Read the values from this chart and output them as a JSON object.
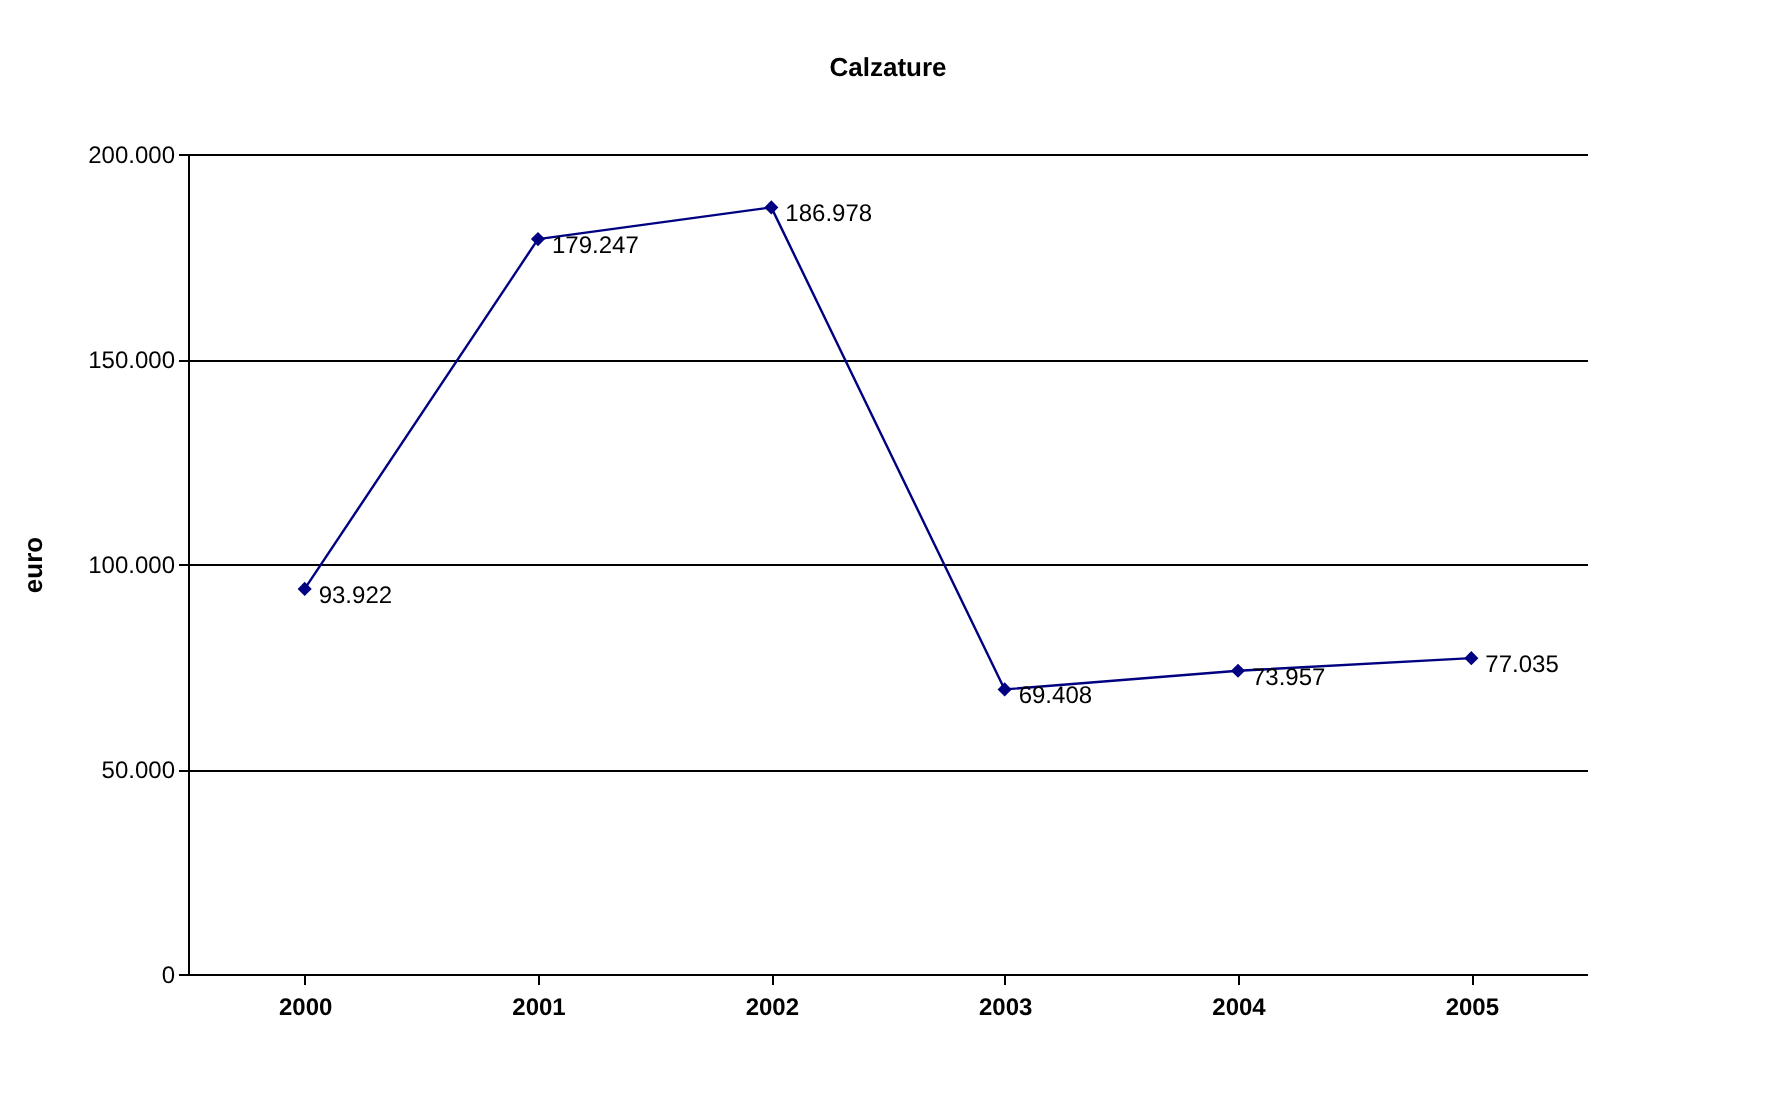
{
  "chart_data": {
    "type": "line",
    "title": "Calzature",
    "ylabel": "euro",
    "categories": [
      "2000",
      "2001",
      "2002",
      "2003",
      "2004",
      "2005"
    ],
    "series": [
      {
        "color": "#000080",
        "values": [
          93922,
          179247,
          186978,
          69408,
          73957,
          77035
        ]
      }
    ],
    "value_labels": [
      "93.922",
      "179.247",
      "186.978",
      "69.408",
      "73.957",
      "77.035"
    ],
    "ylim": [
      0,
      200000
    ],
    "yticks": [
      {
        "value": 0,
        "label": "0"
      },
      {
        "value": 50000,
        "label": "50.000"
      },
      {
        "value": 100000,
        "label": "100.000"
      },
      {
        "value": 150000,
        "label": "150.000"
      },
      {
        "value": 200000,
        "label": "200.000"
      }
    ],
    "grid": "y",
    "marker": "diamond",
    "line_style": "solid"
  }
}
